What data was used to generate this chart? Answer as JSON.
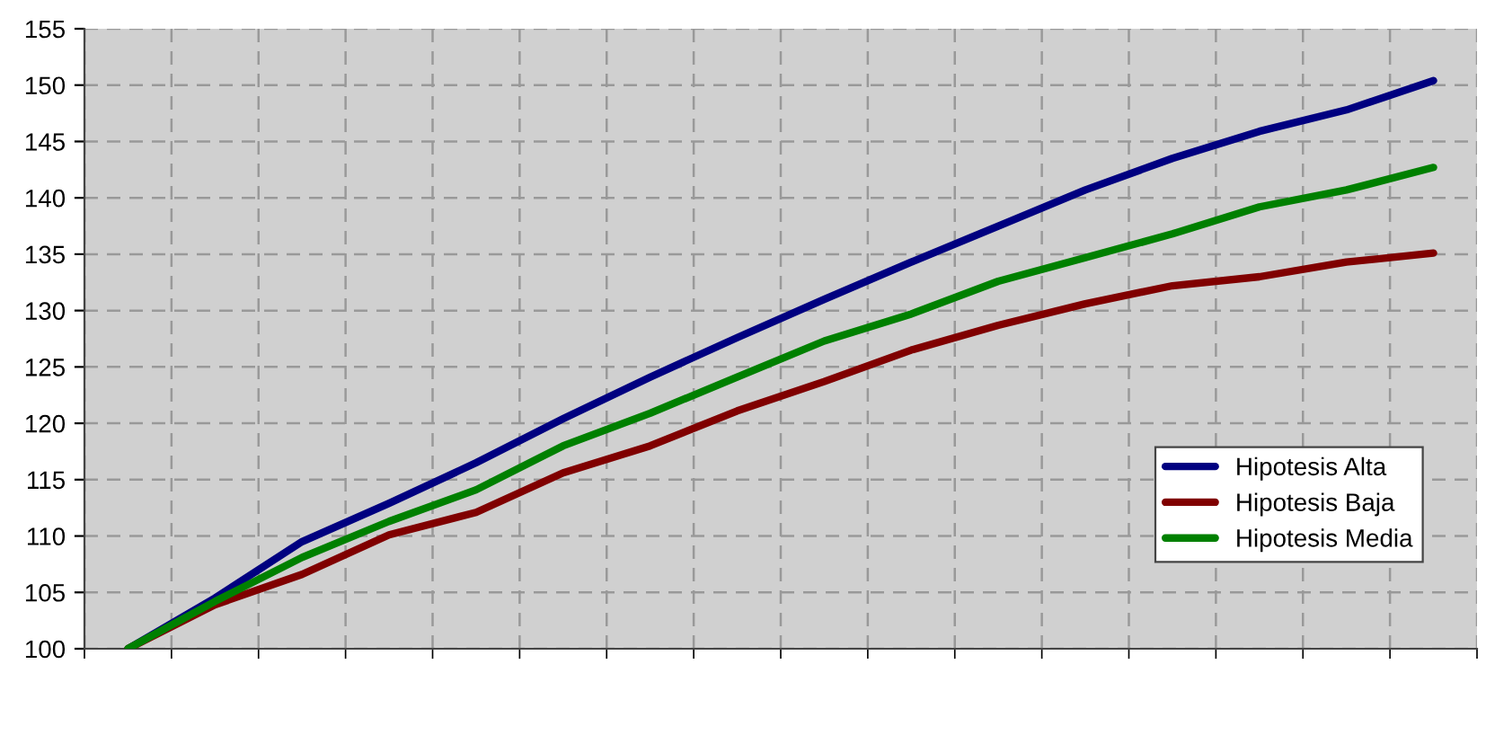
{
  "chart_data": {
    "type": "line",
    "categories": [
      null,
      null,
      null,
      null,
      null,
      null,
      null,
      null,
      null,
      null,
      null,
      null,
      null,
      null,
      null,
      null
    ],
    "series": [
      {
        "name": "Hipotesis Alta",
        "color": "#000080",
        "values": [
          100,
          104.5,
          109.5,
          112.9,
          116.5,
          120.4,
          124.1,
          127.6,
          131.0,
          134.3,
          137.5,
          140.7,
          143.5,
          145.9,
          147.8,
          150.4
        ]
      },
      {
        "name": "Hipotesis Baja",
        "color": "#800000",
        "values": [
          100,
          103.9,
          106.6,
          110.1,
          112.1,
          115.6,
          118.0,
          121.1,
          123.7,
          126.5,
          128.7,
          130.6,
          132.2,
          133.0,
          134.3,
          135.1
        ]
      },
      {
        "name": "Hipotesis Media",
        "color": "#008000",
        "values": [
          100,
          104.2,
          108.1,
          111.3,
          114.1,
          118.0,
          120.9,
          124.1,
          127.3,
          129.7,
          132.6,
          134.7,
          136.8,
          139.2,
          140.7,
          142.7
        ]
      }
    ],
    "ylim": [
      100,
      155
    ],
    "yticks": [
      100,
      105,
      110,
      115,
      120,
      125,
      130,
      135,
      140,
      145,
      150,
      155
    ],
    "grid": true,
    "legend": "bottom right",
    "line_style": "solid",
    "marker": "none"
  }
}
